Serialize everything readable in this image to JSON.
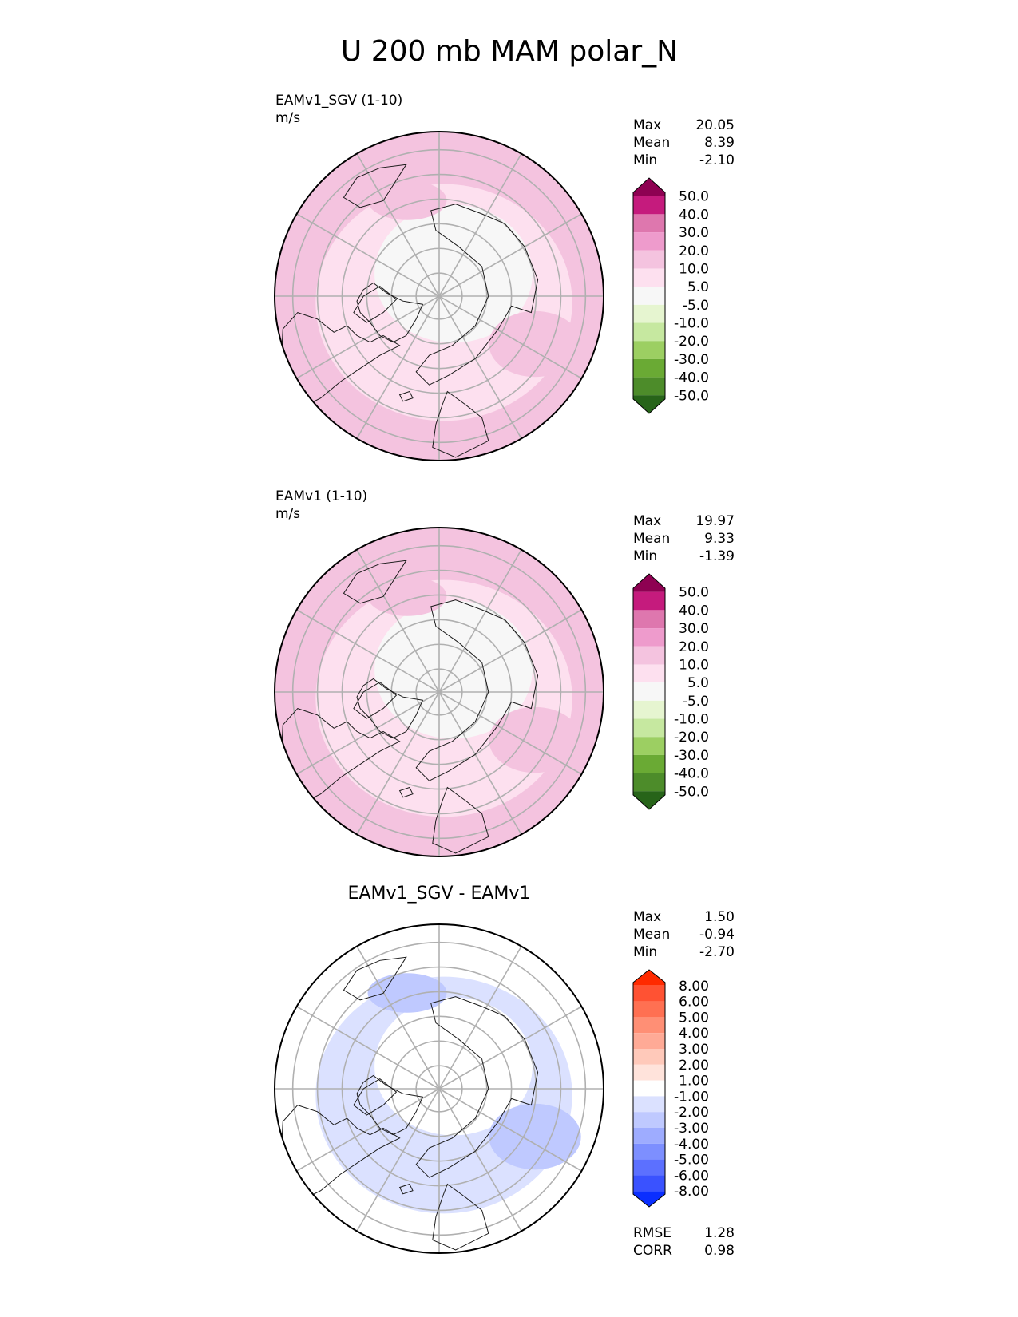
{
  "figure_title": "U 200 mb MAM polar_N",
  "colors": {
    "land_outline": "#1a1a1a",
    "grid": "#b0b0b0",
    "frame": "#000000"
  },
  "chart_data": [
    {
      "type": "heatmap",
      "projection": "north-polar-stereographic",
      "title_left": "EAMv1_SGV (1-10)",
      "units": "m/s",
      "title_center": "",
      "stats": [
        {
          "label": "Max",
          "value": "20.05"
        },
        {
          "label": "Mean",
          "value": "8.39"
        },
        {
          "label": "Min",
          "value": "-2.10"
        }
      ],
      "colorbar": {
        "extend": "both",
        "levels": [
          "50.0",
          "40.0",
          "30.0",
          "20.0",
          "10.0",
          "5.0",
          "-5.0",
          "-10.0",
          "-20.0",
          "-30.0",
          "-40.0",
          "-50.0"
        ],
        "colors": [
          "#8e0152",
          "#c51b7d",
          "#de77ae",
          "#ee9bcc",
          "#f4c3df",
          "#fde0ef",
          "#f7f7f7",
          "#e6f5d0",
          "#c6e8a0",
          "#9ccf62",
          "#6aaa34",
          "#4d8c2a",
          "#276419"
        ]
      },
      "field": {
        "base": "#f4c3df",
        "inner": "#fde0ef",
        "core": "#f7f7f7",
        "patch": "#f4c3df"
      },
      "extra_stats": []
    },
    {
      "type": "heatmap",
      "projection": "north-polar-stereographic",
      "title_left": "EAMv1 (1-10)",
      "units": "m/s",
      "title_center": "",
      "stats": [
        {
          "label": "Max",
          "value": "19.97"
        },
        {
          "label": "Mean",
          "value": "9.33"
        },
        {
          "label": "Min",
          "value": "-1.39"
        }
      ],
      "colorbar": {
        "extend": "both",
        "levels": [
          "50.0",
          "40.0",
          "30.0",
          "20.0",
          "10.0",
          "5.0",
          "-5.0",
          "-10.0",
          "-20.0",
          "-30.0",
          "-40.0",
          "-50.0"
        ],
        "colors": [
          "#8e0152",
          "#c51b7d",
          "#de77ae",
          "#ee9bcc",
          "#f4c3df",
          "#fde0ef",
          "#f7f7f7",
          "#e6f5d0",
          "#c6e8a0",
          "#9ccf62",
          "#6aaa34",
          "#4d8c2a",
          "#276419"
        ]
      },
      "field": {
        "base": "#f4c3df",
        "inner": "#fde0ef",
        "core": "#f7f7f7",
        "patch": "#f4c3df"
      },
      "extra_stats": []
    },
    {
      "type": "heatmap",
      "projection": "north-polar-stereographic",
      "title_left": "",
      "units": "",
      "title_center": "EAMv1_SGV - EAMv1",
      "stats": [
        {
          "label": "Max",
          "value": "1.50"
        },
        {
          "label": "Mean",
          "value": "-0.94"
        },
        {
          "label": "Min",
          "value": "-2.70"
        }
      ],
      "colorbar": {
        "extend": "both",
        "levels": [
          "8.00",
          "6.00",
          "5.00",
          "4.00",
          "3.00",
          "2.00",
          "1.00",
          "-1.00",
          "-2.00",
          "-3.00",
          "-4.00",
          "-5.00",
          "-6.00",
          "-8.00"
        ],
        "colors": [
          "#ff2a00",
          "#ff5233",
          "#ff7052",
          "#ff8f75",
          "#ffaa96",
          "#ffc9ba",
          "#ffe3db",
          "#ffffff",
          "#dbe1ff",
          "#bfc9ff",
          "#9eacff",
          "#7d8fff",
          "#5c70ff",
          "#3a52ff",
          "#0a2eff"
        ]
      },
      "field": {
        "base": "#ffffff",
        "inner": "#dbe1ff",
        "core": "#ffffff",
        "patch": "#bfc9ff"
      },
      "extra_stats": [
        {
          "label": "RMSE",
          "value": "1.28"
        },
        {
          "label": "CORR",
          "value": "0.98"
        }
      ]
    }
  ]
}
